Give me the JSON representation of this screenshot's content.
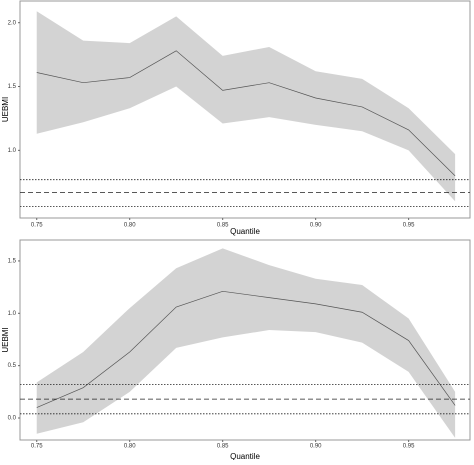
{
  "chart_data": [
    {
      "type": "band-line",
      "ylabel": "UEBMI",
      "xlabel": "Quantile",
      "x": [
        0.75,
        0.775,
        0.8,
        0.825,
        0.85,
        0.875,
        0.9,
        0.925,
        0.95,
        0.975
      ],
      "series": [
        {
          "values": [
            1.61,
            1.53,
            1.57,
            1.78,
            1.47,
            1.53,
            1.41,
            1.34,
            1.16,
            0.8
          ],
          "upper": [
            2.09,
            1.86,
            1.84,
            2.05,
            1.74,
            1.81,
            1.62,
            1.56,
            1.33,
            0.97
          ],
          "lower": [
            1.13,
            1.22,
            1.33,
            1.5,
            1.21,
            1.26,
            1.2,
            1.15,
            1.0,
            0.6
          ],
          "color": "#555",
          "band_color": "#d3d3d3"
        }
      ],
      "hlines": [
        {
          "value": 0.67,
          "style": "dashed"
        },
        {
          "value": 0.77,
          "style": "dotted"
        },
        {
          "value": 0.56,
          "style": "dotted"
        }
      ],
      "xlim": [
        0.741,
        0.983
      ],
      "xticks": [
        {
          "value": 0.75,
          "label": "0.75"
        },
        {
          "value": 0.8,
          "label": "0.80"
        },
        {
          "value": 0.85,
          "label": "0.85"
        },
        {
          "value": 0.9,
          "label": "0.90"
        },
        {
          "value": 0.95,
          "label": "0.95"
        }
      ],
      "ylim": [
        0.47,
        2.17
      ],
      "yticks": [
        {
          "value": 1,
          "label": "1.0"
        },
        {
          "value": 1.5,
          "label": "1.5"
        },
        {
          "value": 2,
          "label": "2.0"
        }
      ]
    },
    {
      "type": "band-line",
      "ylabel": "UEBMI",
      "xlabel": "Quantile",
      "x": [
        0.75,
        0.775,
        0.8,
        0.825,
        0.85,
        0.875,
        0.9,
        0.925,
        0.95,
        0.975
      ],
      "series": [
        {
          "values": [
            0.1,
            0.29,
            0.63,
            1.06,
            1.21,
            1.15,
            1.09,
            1.01,
            0.74,
            0.12
          ],
          "upper": [
            0.34,
            0.63,
            1.05,
            1.43,
            1.62,
            1.46,
            1.33,
            1.27,
            0.95,
            0.25
          ],
          "lower": [
            -0.15,
            -0.04,
            0.25,
            0.67,
            0.77,
            0.84,
            0.82,
            0.72,
            0.44,
            -0.19
          ],
          "color": "#555",
          "band_color": "#d3d3d3"
        }
      ],
      "hlines": [
        {
          "value": 0.18,
          "style": "dashed"
        },
        {
          "value": 0.32,
          "style": "dotted"
        },
        {
          "value": 0.04,
          "style": "dotted"
        }
      ],
      "xlim": [
        0.741,
        0.983
      ],
      "xticks": [
        {
          "value": 0.75,
          "label": "0.75"
        },
        {
          "value": 0.8,
          "label": "0.80"
        },
        {
          "value": 0.85,
          "label": "0.85"
        },
        {
          "value": 0.9,
          "label": "0.90"
        },
        {
          "value": 0.95,
          "label": "0.95"
        }
      ],
      "ylim": [
        -0.21,
        1.7
      ],
      "yticks": [
        {
          "value": 0,
          "label": "0.0"
        },
        {
          "value": 0.5,
          "label": "0.5"
        },
        {
          "value": 1,
          "label": "1.0"
        },
        {
          "value": 1.5,
          "label": "1.5"
        }
      ]
    }
  ]
}
